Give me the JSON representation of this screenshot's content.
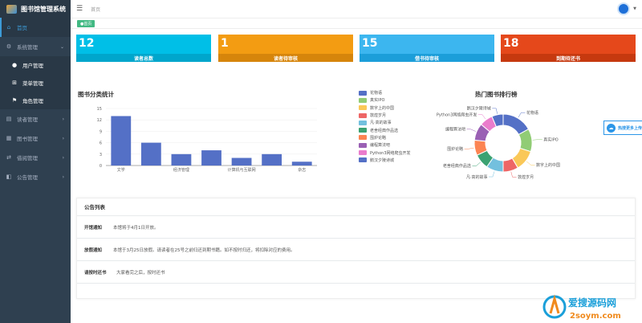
{
  "app": {
    "title": "图书馆管理系统"
  },
  "sidebar": {
    "items": [
      {
        "label": "首页",
        "icon": "home-icon"
      },
      {
        "label": "系统管理",
        "icon": "gear-icon"
      },
      {
        "label": "用户管理",
        "icon": "user-icon"
      },
      {
        "label": "菜单管理",
        "icon": "sitemap-icon"
      },
      {
        "label": "角色管理",
        "icon": "role-icon"
      },
      {
        "label": "读者管理",
        "icon": "reader-icon"
      },
      {
        "label": "图书管理",
        "icon": "book-icon"
      },
      {
        "label": "借阅管理",
        "icon": "borrow-icon"
      },
      {
        "label": "公告管理",
        "icon": "notice-icon"
      }
    ]
  },
  "header": {
    "breadcrumb": "首页"
  },
  "tabs": [
    {
      "label": "首页"
    }
  ],
  "stats": [
    {
      "value": "12",
      "label": "读者总数",
      "color": "#00bfe7"
    },
    {
      "value": "1",
      "label": "读者待审核",
      "color": "#f39c12"
    },
    {
      "value": "15",
      "label": "借书待审核",
      "color": "#3cb6ef"
    },
    {
      "value": "18",
      "label": "到期待还书",
      "color": "#e5481b"
    }
  ],
  "bar_chart_title": "图书分类统计",
  "pie_chart_title": "热门图书排行榜",
  "legend": [
    {
      "name": "花物语",
      "color": "#5470c6"
    },
    {
      "name": "真实IPO",
      "color": "#91cc75"
    },
    {
      "name": "数字上的中国",
      "color": "#fac858"
    },
    {
      "name": "敦煌岁月",
      "color": "#ee6666"
    },
    {
      "name": "凡·高的故事",
      "color": "#73c0de"
    },
    {
      "name": "老舍经典作品选",
      "color": "#3ba272"
    },
    {
      "name": "围炉论略",
      "color": "#fc8452"
    },
    {
      "name": "编程算法吧",
      "color": "#9a60b4"
    },
    {
      "name": "Python3网络爬虫开发",
      "color": "#ea7ccc"
    },
    {
      "name": "鹅汉夕陵诗城",
      "color": "#5470c6"
    }
  ],
  "chart_data": [
    {
      "type": "bar",
      "title": "图书分类统计",
      "categories": [
        "文学",
        "",
        "经济管理",
        "",
        "计算机与互联网",
        "",
        "杂志"
      ],
      "values": [
        13,
        6,
        3,
        4,
        2,
        3,
        1
      ],
      "ylim": [
        0,
        15
      ],
      "yticks": [
        "0",
        "3",
        "6",
        "9",
        "12",
        "15"
      ],
      "color": "#5470c6"
    },
    {
      "type": "pie",
      "title": "热门图书排行榜",
      "labels": [
        "花物语",
        "真实IPO",
        "数字上的中国",
        "敦煌岁月",
        "凡·高的故事",
        "老舍经典作品选",
        "围炉论略",
        "编程算法吧",
        "Python3网络爬虫开发",
        "鹅汉夕陵诗城"
      ],
      "values": [
        16,
        12,
        11,
        8,
        9,
        8,
        8,
        9,
        7,
        6
      ]
    }
  ],
  "notices": {
    "title": "公告列表",
    "rows": [
      {
        "title": "开馆通知",
        "content": "本馆将于4月1日开放。"
      },
      {
        "title": "放假通知",
        "content": "本馆于3月25日放假。请读者在25号之前归还到期书籍。如不按时归还，将扣除对应的费用。"
      },
      {
        "title": "请按时还书",
        "content": "大家看完之后，按时还书"
      }
    ]
  },
  "float_button": {
    "label": "热搜更多上传"
  },
  "watermark": {
    "line1": "爱搜源码网",
    "line2": "2soym.com"
  }
}
